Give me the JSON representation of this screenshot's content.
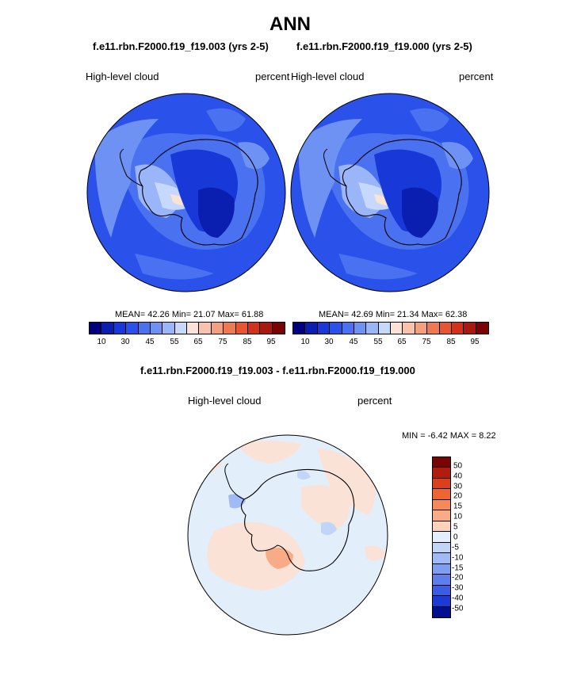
{
  "title": "ANN",
  "panel_left": {
    "case": "f.e11.rbn.F2000.f19_f19.003 (yrs 2-5)",
    "variable": "High-level cloud",
    "units": "percent",
    "stats": "MEAN=  42.26  Min=  21.07  Max=  61.88"
  },
  "panel_right": {
    "case": "f.e11.rbn.F2000.f19_f19.000 (yrs 2-5)",
    "variable": "High-level cloud",
    "units": "percent",
    "stats": "MEAN=  42.69  Min=  21.34  Max=  62.38"
  },
  "panel_diff": {
    "case": "f.e11.rbn.F2000.f19_f19.003 - f.e11.rbn.F2000.f19_f19.000",
    "variable": "High-level cloud",
    "units": "percent",
    "stats": "MIN =  -6.42 MAX =   8.22"
  },
  "chart_data": [
    {
      "type": "heatmap",
      "projection": "south polar stereographic",
      "title": "f.e11.rbn.F2000.f19_f19.003 (yrs 2-5)",
      "variable": "High-level cloud",
      "units": "percent",
      "mean": 42.26,
      "min": 21.07,
      "max": 61.88,
      "colorbar_ticks": [
        "10",
        "30",
        "45",
        "55",
        "65",
        "75",
        "85",
        "95"
      ]
    },
    {
      "type": "heatmap",
      "projection": "south polar stereographic",
      "title": "f.e11.rbn.F2000.f19_f19.000 (yrs 2-5)",
      "variable": "High-level cloud",
      "units": "percent",
      "mean": 42.69,
      "min": 21.34,
      "max": 62.38,
      "colorbar_ticks": [
        "10",
        "30",
        "45",
        "55",
        "65",
        "75",
        "85",
        "95"
      ]
    },
    {
      "type": "heatmap",
      "projection": "south polar stereographic",
      "title": "f.e11.rbn.F2000.f19_f19.003 - f.e11.rbn.F2000.f19_f19.000",
      "variable": "High-level cloud",
      "units": "percent",
      "min": -6.42,
      "max": 8.22,
      "colorbar_ticks": [
        "50",
        "40",
        "30",
        "20",
        "15",
        "10",
        "5",
        "0",
        "-5",
        "-10",
        "-15",
        "-20",
        "-30",
        "-40",
        "-50"
      ]
    }
  ],
  "colors": {
    "abs_scale": [
      "#00007f",
      "#0a1fb0",
      "#1838d8",
      "#2a52eb",
      "#4a72f0",
      "#6e92f4",
      "#9ab5f8",
      "#c6d8fb",
      "#fbe2d6",
      "#f8c3aa",
      "#f5a07c",
      "#f07a50",
      "#e85530",
      "#d0321c",
      "#a8190f",
      "#7a0403"
    ],
    "diff_scale": [
      "#7a0403",
      "#b01c0e",
      "#d9401d",
      "#ef6530",
      "#f58a58",
      "#f7ab86",
      "#fbd2bd",
      "#e3eefb",
      "#c0d6f8",
      "#9fbaf4",
      "#7e9ef0",
      "#5c7fec",
      "#3b5de6",
      "#1e3ad4",
      "#02108f"
    ]
  }
}
